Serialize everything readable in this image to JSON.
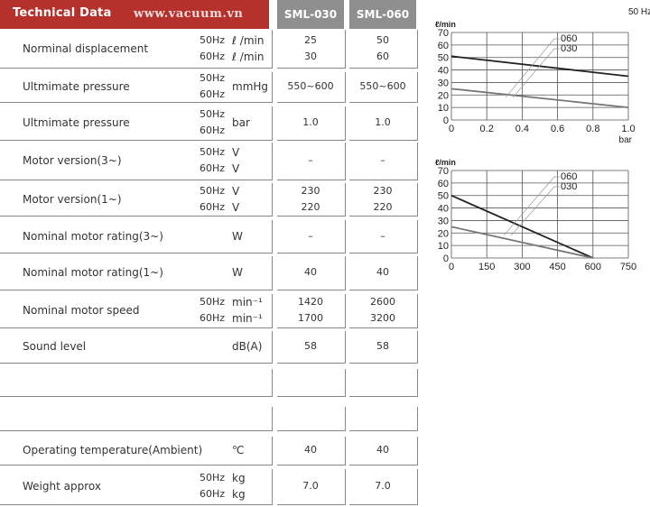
{
  "header": {
    "title": "Technical Data",
    "watermark": "www.vacuum.vn",
    "col1": "SML-030",
    "col2": "SML-060"
  },
  "rows": [
    {
      "label": "Norminal displacement",
      "hz": [
        "50Hz",
        "60Hz"
      ],
      "units": [
        "ℓ /min",
        "ℓ /min"
      ],
      "v1": [
        "25",
        "30"
      ],
      "v2": [
        "50",
        "60"
      ]
    },
    {
      "label": "Ultmimate pressure",
      "hz": [
        "50Hz",
        "60Hz"
      ],
      "units": [
        "mmHg"
      ],
      "v1": [
        "550~600"
      ],
      "v2": [
        "550~600"
      ]
    },
    {
      "label": "Ultmimate pressure",
      "hz": [
        "50Hz",
        "60Hz"
      ],
      "units": [
        "bar"
      ],
      "v1": [
        "1.0"
      ],
      "v2": [
        "1.0"
      ]
    },
    {
      "label": "Motor version(3~)",
      "hz": [
        "50Hz",
        "60Hz"
      ],
      "units": [
        "V",
        "V"
      ],
      "v1": [
        "–"
      ],
      "v2": [
        "–"
      ]
    },
    {
      "label": "Motor version(1~)",
      "hz": [
        "50Hz",
        "60Hz"
      ],
      "units": [
        "V",
        "V"
      ],
      "v1": [
        "230",
        "220"
      ],
      "v2": [
        "230",
        "220"
      ]
    },
    {
      "label": "Nominal motor rating(3~)",
      "hz": [],
      "units": [
        "W"
      ],
      "v1": [
        "–"
      ],
      "v2": [
        "–"
      ]
    },
    {
      "label": "Nominal motor rating(1~)",
      "hz": [],
      "units": [
        "W"
      ],
      "v1": [
        "40"
      ],
      "v2": [
        "40"
      ]
    },
    {
      "label": "Nominal motor speed",
      "hz": [
        "50Hz",
        "60Hz"
      ],
      "units": [
        "min⁻¹",
        "min⁻¹"
      ],
      "v1": [
        "1420",
        "1700"
      ],
      "v2": [
        "2600",
        "3200"
      ]
    },
    {
      "label": "Sound level",
      "hz": [],
      "units": [
        "dB(A)"
      ],
      "v1": [
        "58"
      ],
      "v2": [
        "58"
      ]
    },
    {
      "label": "",
      "hz": [],
      "units": [],
      "v1": [],
      "v2": []
    },
    {
      "label": "",
      "hz": [],
      "units": [],
      "v1": [],
      "v2": []
    },
    {
      "label": "Operating temperature(Ambient)",
      "hz": [],
      "units": [
        "℃"
      ],
      "v1": [
        "40"
      ],
      "v2": [
        "40"
      ]
    },
    {
      "label": "Weight approx",
      "hz": [
        "50Hz",
        "60Hz"
      ],
      "units": [
        "kg",
        "kg"
      ],
      "v1": [
        "7.0"
      ],
      "v2": [
        "7.0"
      ]
    }
  ],
  "chart_data": [
    {
      "type": "line",
      "freq_label": "50 Hz",
      "ylabel": "ℓ/min",
      "xlabel": "bar",
      "x_ticks": [
        "0",
        "0.2",
        "0.4",
        "0.6",
        "0.8",
        "1.0"
      ],
      "y_ticks": [
        "0",
        "10",
        "20",
        "30",
        "40",
        "50",
        "60",
        "70"
      ],
      "xlim": [
        0,
        1.0
      ],
      "ylim": [
        0,
        70
      ],
      "series": [
        {
          "name": "060",
          "color": "#222222",
          "x": [
            0,
            1.0
          ],
          "y": [
            51,
            35
          ]
        },
        {
          "name": "030",
          "color": "#777777",
          "x": [
            0,
            1.0
          ],
          "y": [
            25,
            10
          ]
        }
      ]
    },
    {
      "type": "line",
      "ylabel": "ℓ/min",
      "xlabel": "",
      "x_ticks": [
        "0",
        "150",
        "300",
        "450",
        "600",
        "750"
      ],
      "y_ticks": [
        "0",
        "10",
        "20",
        "30",
        "40",
        "50",
        "60",
        "70"
      ],
      "xlim": [
        0,
        750
      ],
      "ylim": [
        0,
        70
      ],
      "series": [
        {
          "name": "060",
          "color": "#222222",
          "x": [
            0,
            600
          ],
          "y": [
            50,
            0
          ]
        },
        {
          "name": "030",
          "color": "#777777",
          "x": [
            0,
            600
          ],
          "y": [
            25,
            0
          ]
        }
      ]
    }
  ]
}
